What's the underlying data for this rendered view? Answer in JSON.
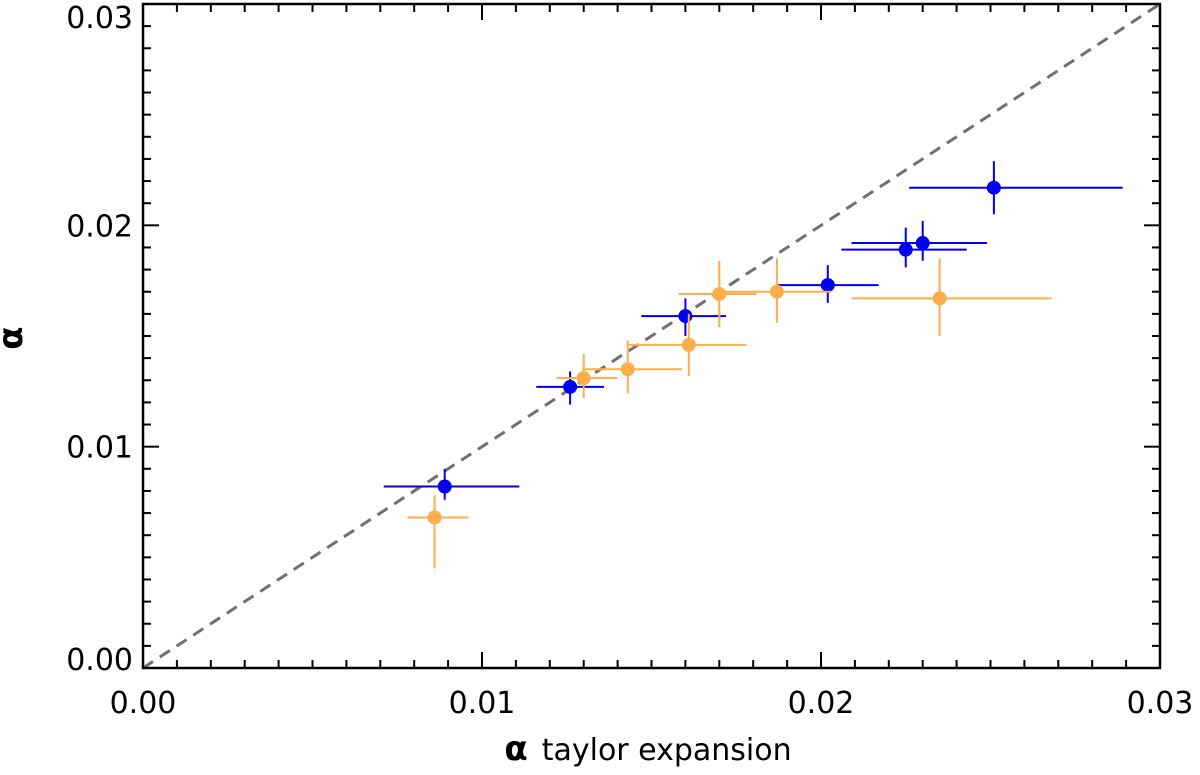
{
  "chart_data": {
    "type": "scatter",
    "xlabel_symbol": "α",
    "xlabel_text": "taylor expansion",
    "ylabel": "α",
    "xlim": [
      0.0,
      0.03
    ],
    "ylim": [
      0.0,
      0.03
    ],
    "xticks": [
      0.0,
      0.01,
      0.02,
      0.03
    ],
    "yticks": [
      0.0,
      0.01,
      0.02,
      0.03
    ],
    "xtick_labels": [
      "0.00",
      "0.01",
      "0.02",
      "0.03"
    ],
    "ytick_labels": [
      "0.00",
      "0.01",
      "0.02",
      "0.03"
    ],
    "grid": false,
    "reference_line": {
      "style": "dashed",
      "color": "#707070",
      "x": [
        0.0,
        0.03
      ],
      "y": [
        0.0,
        0.03
      ]
    },
    "series": [
      {
        "color": "#0000ee",
        "points": [
          {
            "x": 0.0089,
            "y": 0.0082,
            "xerr": [
              0.0018,
              0.0022
            ],
            "yerr": [
              0.0006,
              0.0008
            ]
          },
          {
            "x": 0.0126,
            "y": 0.0127,
            "xerr": [
              0.001,
              0.001
            ],
            "yerr": [
              0.0008,
              0.0007
            ]
          },
          {
            "x": 0.016,
            "y": 0.0159,
            "xerr": [
              0.0013,
              0.0012
            ],
            "yerr": [
              0.0009,
              0.0008
            ]
          },
          {
            "x": 0.0202,
            "y": 0.0173,
            "xerr": [
              0.0015,
              0.0015
            ],
            "yerr": [
              0.0008,
              0.0009
            ]
          },
          {
            "x": 0.0225,
            "y": 0.0189,
            "xerr": [
              0.0019,
              0.0018
            ],
            "yerr": [
              0.0008,
              0.001
            ]
          },
          {
            "x": 0.023,
            "y": 0.0192,
            "xerr": [
              0.0021,
              0.0019
            ],
            "yerr": [
              0.0008,
              0.001
            ]
          },
          {
            "x": 0.0251,
            "y": 0.0217,
            "xerr": [
              0.0025,
              0.0038
            ],
            "yerr": [
              0.0012,
              0.0012
            ]
          }
        ]
      },
      {
        "color": "#ffad4a",
        "points": [
          {
            "x": 0.0086,
            "y": 0.0068,
            "xerr": [
              0.0008,
              0.001
            ],
            "yerr": [
              0.0023,
              0.001
            ]
          },
          {
            "x": 0.013,
            "y": 0.0131,
            "xerr": [
              0.0008,
              0.001
            ],
            "yerr": [
              0.0009,
              0.0011
            ]
          },
          {
            "x": 0.0143,
            "y": 0.0135,
            "xerr": [
              0.0013,
              0.0016
            ],
            "yerr": [
              0.0011,
              0.0013
            ]
          },
          {
            "x": 0.0161,
            "y": 0.0146,
            "xerr": [
              0.0018,
              0.0017
            ],
            "yerr": [
              0.0014,
              0.0014
            ]
          },
          {
            "x": 0.017,
            "y": 0.0169,
            "xerr": [
              0.0012,
              0.0011
            ],
            "yerr": [
              0.0015,
              0.0015
            ]
          },
          {
            "x": 0.0187,
            "y": 0.017,
            "xerr": [
              0.0016,
              0.0016
            ],
            "yerr": [
              0.0014,
              0.0015
            ]
          },
          {
            "x": 0.0235,
            "y": 0.0167,
            "xerr": [
              0.0026,
              0.0033
            ],
            "yerr": [
              0.0017,
              0.0018
            ]
          }
        ]
      }
    ]
  }
}
